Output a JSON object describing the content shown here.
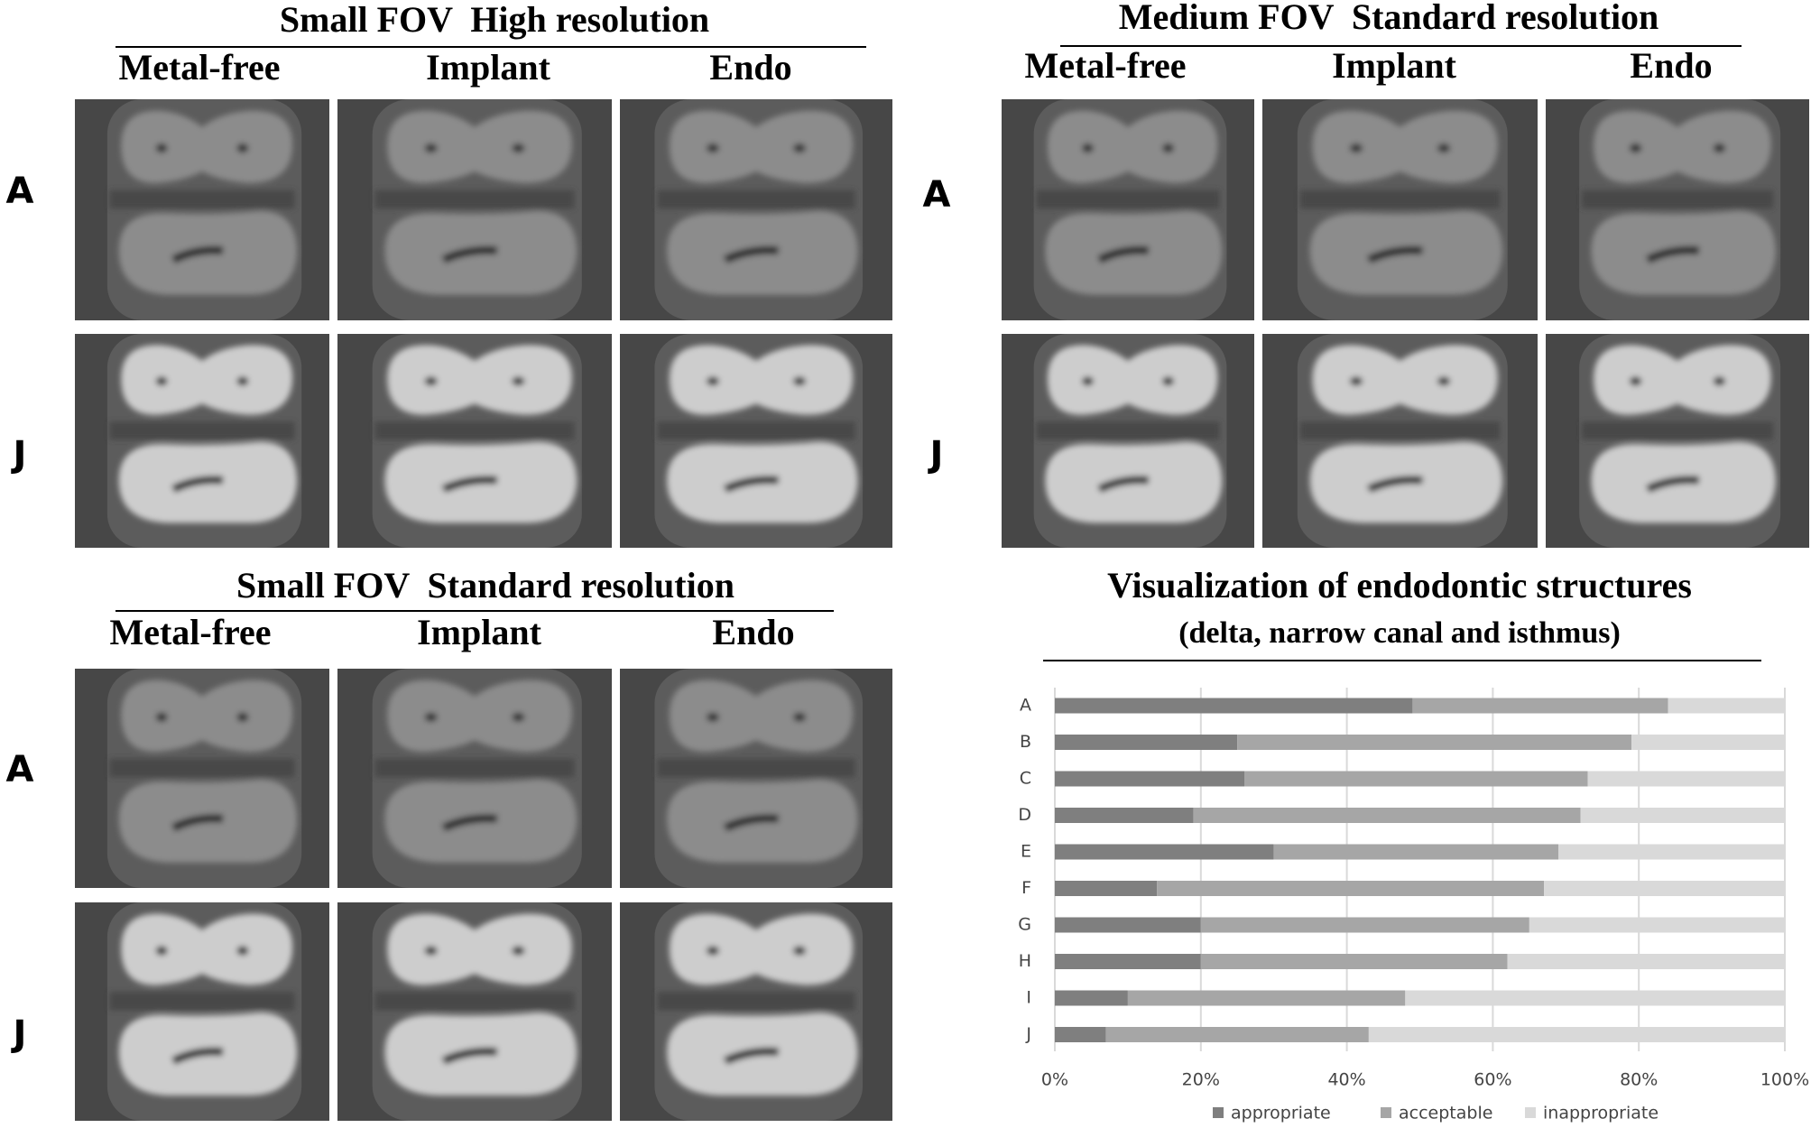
{
  "panels": [
    {
      "title": "Small FOV  High resolution",
      "columns": [
        "Metal-free",
        "Implant",
        "Endo"
      ],
      "rows": [
        "A",
        "J"
      ]
    },
    {
      "title": "Medium FOV  Standard resolution",
      "columns": [
        "Metal-free",
        "Implant",
        "Endo"
      ],
      "rows": [
        "A",
        "J"
      ]
    },
    {
      "title": "Small FOV  Standard resolution",
      "columns": [
        "Metal-free",
        "Implant",
        "Endo"
      ],
      "rows": [
        "A",
        "J"
      ]
    }
  ],
  "chart_data": {
    "type": "bar",
    "orientation": "horizontal",
    "stacked": true,
    "title": "Visualization of endodontic structures",
    "subtitle": "(delta, narrow canal and isthmus)",
    "categories": [
      "A",
      "B",
      "C",
      "D",
      "E",
      "F",
      "G",
      "H",
      "I",
      "J"
    ],
    "series": [
      {
        "name": "appropriate",
        "color": "#7f7f7f",
        "values": [
          49,
          25,
          26,
          19,
          30,
          14,
          20,
          20,
          10,
          7
        ]
      },
      {
        "name": "acceptable",
        "color": "#a6a6a6",
        "values": [
          35,
          54,
          47,
          53,
          39,
          53,
          45,
          42,
          38,
          36
        ]
      },
      {
        "name": "inappropriate",
        "color": "#d9d9d9",
        "values": [
          16,
          21,
          27,
          28,
          31,
          33,
          35,
          38,
          52,
          57
        ]
      }
    ],
    "xlim": [
      0,
      100
    ],
    "xticks": [
      {
        "value": 0,
        "label": "0%"
      },
      {
        "value": 20,
        "label": "20%"
      },
      {
        "value": 40,
        "label": "40%"
      },
      {
        "value": 60,
        "label": "60%"
      },
      {
        "value": 80,
        "label": "80%"
      },
      {
        "value": 100,
        "label": "100%"
      }
    ],
    "grid": true,
    "legend": "bottom"
  }
}
